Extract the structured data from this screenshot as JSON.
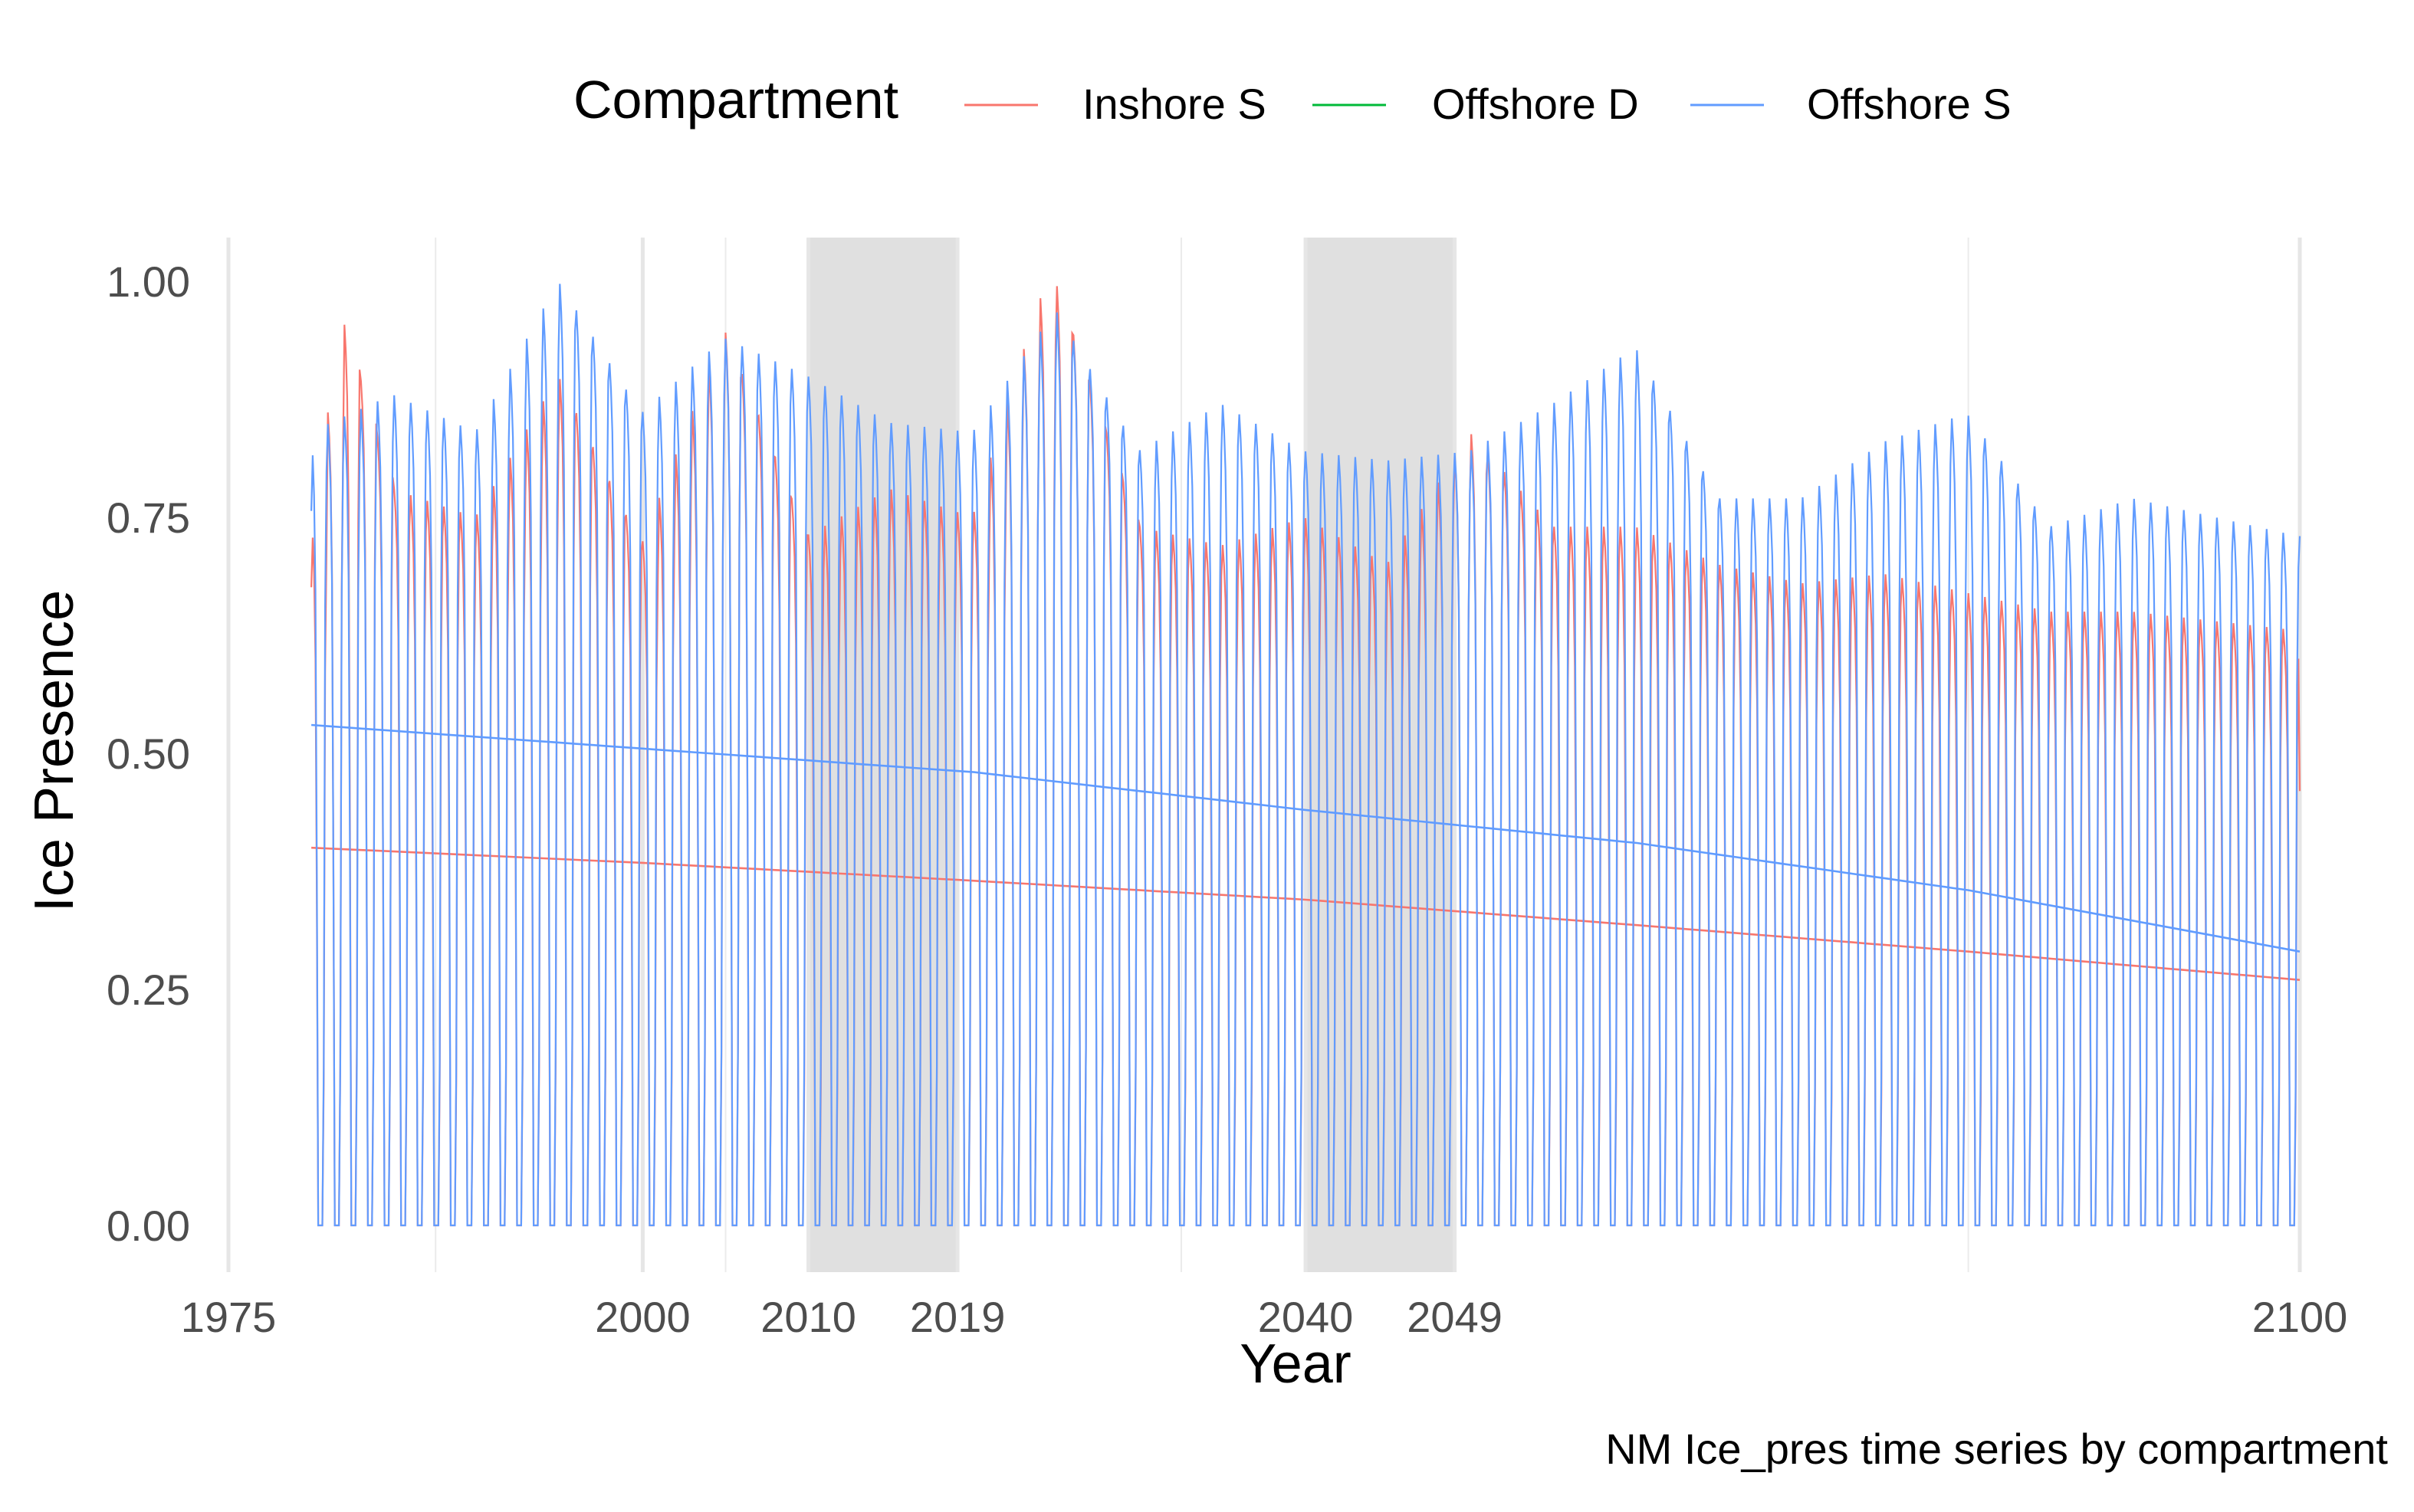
{
  "chart_data": {
    "type": "line",
    "title": "",
    "caption": "NM Ice_pres time series by compartment",
    "xlabel": "Year",
    "ylabel": "Ice Presence",
    "xlim": [
      1975,
      2100
    ],
    "ylim": [
      0,
      1
    ],
    "x_ticks": [
      1975,
      2000,
      2010,
      2019,
      2040,
      2049,
      2100
    ],
    "x_tick_labels": [
      "1975",
      "2000",
      "2010",
      "2019",
      "2040",
      "2049",
      "2100"
    ],
    "y_ticks": [
      0,
      0.25,
      0.5,
      0.75,
      1.0
    ],
    "y_tick_labels": [
      "0.00",
      "0.25",
      "0.50",
      "0.75",
      "1.00"
    ],
    "shaded_periods": [
      {
        "start": 2010,
        "end": 2019
      },
      {
        "start": 2040,
        "end": 2049
      }
    ],
    "legend": {
      "title": "Compartment",
      "position": "top",
      "entries": [
        {
          "label": "Inshore S",
          "color": "#F8766D"
        },
        {
          "label": "Offshore D",
          "color": "#00BA38"
        },
        {
          "label": "Offshore S",
          "color": "#619CFF"
        }
      ]
    },
    "series": [
      {
        "name": "Offshore S",
        "color": "#619CFF",
        "seasonal_frequency": "monthly",
        "start_year": 1980,
        "end_year": 2100,
        "annual_peaks": [
          {
            "x": 1980,
            "y": 0.84
          },
          {
            "x": 1985,
            "y": 0.88
          },
          {
            "x": 1990,
            "y": 0.84
          },
          {
            "x": 1995,
            "y": 1.0
          },
          {
            "x": 2000,
            "y": 0.86
          },
          {
            "x": 2005,
            "y": 0.94
          },
          {
            "x": 2010,
            "y": 0.9
          },
          {
            "x": 2015,
            "y": 0.85
          },
          {
            "x": 2020,
            "y": 0.84
          },
          {
            "x": 2025,
            "y": 0.97
          },
          {
            "x": 2030,
            "y": 0.82
          },
          {
            "x": 2035,
            "y": 0.87
          },
          {
            "x": 2040,
            "y": 0.82
          },
          {
            "x": 2045,
            "y": 0.81
          },
          {
            "x": 2050,
            "y": 0.82
          },
          {
            "x": 2055,
            "y": 0.87
          },
          {
            "x": 2060,
            "y": 0.93
          },
          {
            "x": 2065,
            "y": 0.77
          },
          {
            "x": 2070,
            "y": 0.77
          },
          {
            "x": 2075,
            "y": 0.83
          },
          {
            "x": 2080,
            "y": 0.86
          },
          {
            "x": 2085,
            "y": 0.74
          },
          {
            "x": 2090,
            "y": 0.77
          },
          {
            "x": 2095,
            "y": 0.75
          },
          {
            "x": 2100,
            "y": 0.73
          }
        ],
        "annual_minimum": 0.0,
        "trend": [
          {
            "x": 1980,
            "y": 0.53
          },
          {
            "x": 2000,
            "y": 0.505
          },
          {
            "x": 2020,
            "y": 0.48
          },
          {
            "x": 2040,
            "y": 0.44
          },
          {
            "x": 2060,
            "y": 0.405
          },
          {
            "x": 2080,
            "y": 0.355
          },
          {
            "x": 2100,
            "y": 0.29
          }
        ]
      },
      {
        "name": "Inshore S",
        "color": "#F8766D",
        "seasonal_frequency": "monthly",
        "start_year": 1980,
        "end_year": 2100,
        "annual_peaks": [
          {
            "x": 1980,
            "y": 0.74
          },
          {
            "x": 1982,
            "y": 0.96
          },
          {
            "x": 1985,
            "y": 0.78
          },
          {
            "x": 1990,
            "y": 0.75
          },
          {
            "x": 1995,
            "y": 0.9
          },
          {
            "x": 2000,
            "y": 0.72
          },
          {
            "x": 2005,
            "y": 0.95
          },
          {
            "x": 2010,
            "y": 0.73
          },
          {
            "x": 2015,
            "y": 0.78
          },
          {
            "x": 2020,
            "y": 0.75
          },
          {
            "x": 2024,
            "y": 0.98
          },
          {
            "x": 2025,
            "y": 1.0
          },
          {
            "x": 2030,
            "y": 0.74
          },
          {
            "x": 2035,
            "y": 0.72
          },
          {
            "x": 2040,
            "y": 0.75
          },
          {
            "x": 2045,
            "y": 0.7
          },
          {
            "x": 2050,
            "y": 0.84
          },
          {
            "x": 2055,
            "y": 0.74
          },
          {
            "x": 2060,
            "y": 0.74
          },
          {
            "x": 2065,
            "y": 0.7
          },
          {
            "x": 2070,
            "y": 0.68
          },
          {
            "x": 2075,
            "y": 0.69
          },
          {
            "x": 2080,
            "y": 0.67
          },
          {
            "x": 2085,
            "y": 0.65
          },
          {
            "x": 2090,
            "y": 0.65
          },
          {
            "x": 2095,
            "y": 0.64
          },
          {
            "x": 2100,
            "y": 0.63
          }
        ],
        "annual_minimum": 0.0,
        "end_value": 0.46,
        "trend": [
          {
            "x": 1980,
            "y": 0.4
          },
          {
            "x": 2000,
            "y": 0.384
          },
          {
            "x": 2020,
            "y": 0.365
          },
          {
            "x": 2040,
            "y": 0.345
          },
          {
            "x": 2060,
            "y": 0.318
          },
          {
            "x": 2080,
            "y": 0.29
          },
          {
            "x": 2100,
            "y": 0.26
          }
        ]
      },
      {
        "name": "Offshore D",
        "color": "#00BA38",
        "values": []
      }
    ]
  }
}
